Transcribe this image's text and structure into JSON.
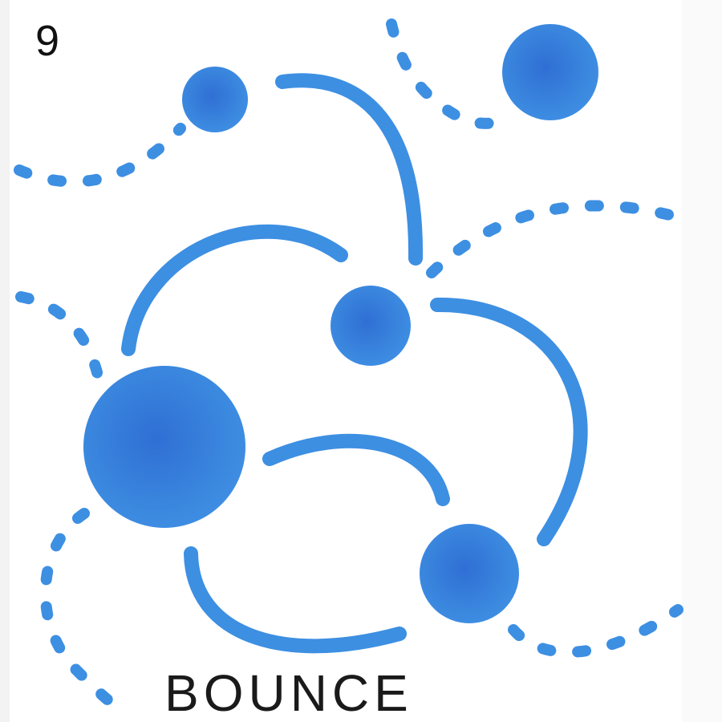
{
  "tile": {
    "number": "9",
    "title": "BOUNCE"
  },
  "colors": {
    "ink": "#3b8fe0",
    "ink_dark": "#2c6fd0",
    "paper": "#ffffff",
    "pen": "#111111"
  }
}
